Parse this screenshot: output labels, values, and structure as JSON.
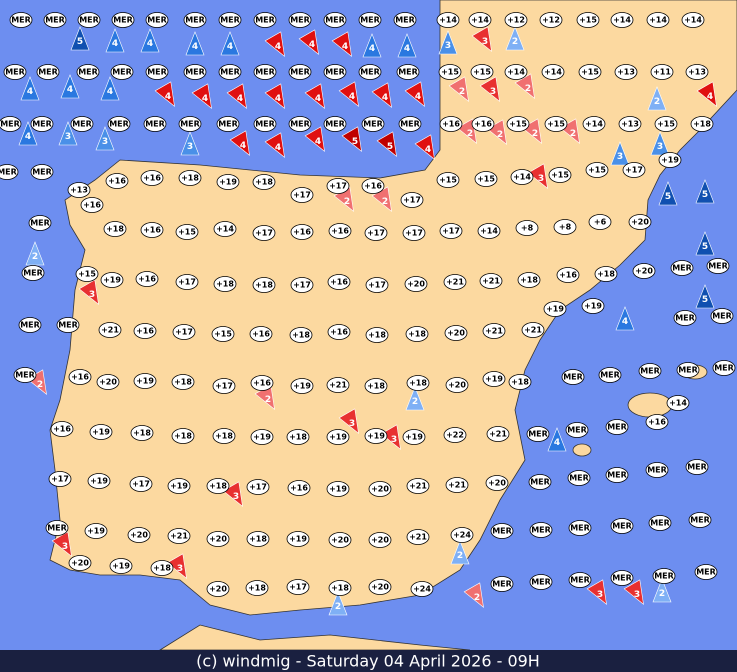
{
  "footer": "(c) windmig - Saturday 04 April 2026 - 09H",
  "stations": [
    "MER",
    "MER",
    "MER",
    "MER",
    "MER",
    "MER",
    "MER",
    "MER",
    "MER",
    "MER",
    "MER",
    "MER",
    "+14",
    "+14",
    "+12",
    "+12",
    "+15",
    "+14",
    "+14",
    "+14",
    "MER",
    "MER",
    "MER",
    "MER",
    "MER",
    "MER",
    "MER",
    "MER",
    "MER",
    "MER",
    "MER",
    "MER",
    "+15",
    "+15",
    "+14",
    "+14",
    "+15",
    "+13",
    "+11",
    "+13",
    "MER",
    "MER",
    "MER",
    "MER",
    "MER",
    "MER",
    "MER",
    "MER",
    "MER",
    "MER",
    "MER",
    "MER",
    "+16",
    "+16",
    "+15",
    "+15",
    "+14",
    "+13",
    "+15",
    "+18",
    "MER",
    "MER",
    "+13",
    "+16",
    "+16",
    "+18",
    "+19",
    "+18",
    "+17",
    "+17",
    "+16",
    "+17",
    "+15",
    "+15",
    "+14",
    "+15",
    "+15",
    "+17",
    "+19",
    "MER",
    "+16",
    "+18",
    "+16",
    "+15",
    "+14",
    "+17",
    "+16",
    "+16",
    "+17",
    "+17",
    "+17",
    "+14",
    "+8",
    "+8",
    "+6",
    "+20",
    "MER",
    "+15",
    "+19",
    "+16",
    "+17",
    "+18",
    "+18",
    "+17",
    "+16",
    "+17",
    "+20",
    "+21",
    "+21",
    "+18",
    "+16",
    "+18",
    "+20",
    "MER",
    "MER",
    "MER",
    "MER",
    "+21",
    "+16",
    "+17",
    "+15",
    "+16",
    "+18",
    "+16",
    "+18",
    "+18",
    "+20",
    "+21",
    "+21",
    "+19",
    "+19",
    "MER",
    "MER",
    "MER",
    "+16",
    "+20",
    "+19",
    "+18",
    "+17",
    "+16",
    "+19",
    "+21",
    "+18",
    "+18",
    "+20",
    "+19",
    "+18",
    "MER",
    "MER",
    "MER",
    "MER",
    "MER",
    "+16",
    "+19",
    "+18",
    "+18",
    "+18",
    "+19",
    "+18",
    "+19",
    "+19",
    "+19",
    "+22",
    "+21",
    "MER",
    "MER",
    "MER",
    "+16",
    "+14",
    "+17",
    "+19",
    "+17",
    "+19",
    "+18",
    "+17",
    "+16",
    "+19",
    "+20",
    "+21",
    "+21",
    "+20",
    "MER",
    "MER",
    "MER",
    "MER",
    "MER",
    "MER",
    "+19",
    "+20",
    "+21",
    "+20",
    "+18",
    "+19",
    "+20",
    "+20",
    "+21",
    "+24",
    "MER",
    "MER",
    "MER",
    "MER",
    "MER",
    "MER",
    "+20",
    "+19",
    "+18",
    "+20",
    "+18",
    "+17",
    "+18",
    "+20",
    "+24",
    "MER",
    "MER",
    "MER",
    "MER",
    "MER",
    "MER"
  ],
  "winds": [
    {
      "value": 5,
      "color": "#1050b0"
    },
    {
      "value": 4,
      "color": "#2a78e0"
    },
    {
      "value": 4,
      "color": "#2a78e0"
    },
    {
      "value": 4,
      "color": "#2a78e0"
    },
    {
      "value": 4,
      "color": "#2a78e0"
    },
    {
      "value": 4,
      "color": "#e01010"
    },
    {
      "value": 4,
      "color": "#e01010"
    },
    {
      "value": 4,
      "color": "#e01010"
    },
    {
      "value": 4,
      "color": "#2a78e0"
    },
    {
      "value": 4,
      "color": "#2a78e0"
    },
    {
      "value": 3,
      "color": "#4a90e8"
    },
    {
      "value": 3,
      "color": "#e83030"
    },
    {
      "value": 2,
      "color": "#7fb0f5"
    },
    {
      "value": 4,
      "color": "#2a78e0"
    },
    {
      "value": 4,
      "color": "#2a78e0"
    },
    {
      "value": 4,
      "color": "#2a78e0"
    },
    {
      "value": 4,
      "color": "#e01010"
    },
    {
      "value": 4,
      "color": "#e01010"
    },
    {
      "value": 4,
      "color": "#e01010"
    },
    {
      "value": 4,
      "color": "#e01010"
    },
    {
      "value": 4,
      "color": "#e01010"
    },
    {
      "value": 4,
      "color": "#e01010"
    },
    {
      "value": 4,
      "color": "#e01010"
    },
    {
      "value": 4,
      "color": "#e01010"
    },
    {
      "value": 2,
      "color": "#f07070"
    },
    {
      "value": 3,
      "color": "#e83030"
    },
    {
      "value": 2,
      "color": "#f07070"
    },
    {
      "value": 4,
      "color": "#e01010"
    },
    {
      "value": 4,
      "color": "#2a78e0"
    },
    {
      "value": 3,
      "color": "#4a90e8"
    },
    {
      "value": 3,
      "color": "#4a90e8"
    },
    {
      "value": 3,
      "color": "#4a90e8"
    },
    {
      "value": 4,
      "color": "#e01010"
    },
    {
      "value": 4,
      "color": "#e01010"
    },
    {
      "value": 4,
      "color": "#e01010"
    },
    {
      "value": 5,
      "color": "#c00000"
    },
    {
      "value": 5,
      "color": "#c00000"
    },
    {
      "value": 4,
      "color": "#e01010"
    },
    {
      "value": 2,
      "color": "#f07070"
    },
    {
      "value": 2,
      "color": "#f07070"
    },
    {
      "value": 2,
      "color": "#f07070"
    },
    {
      "value": 2,
      "color": "#f07070"
    },
    {
      "value": 2,
      "color": "#7fb0f5"
    },
    {
      "value": 3,
      "color": "#4a90e8"
    },
    {
      "value": 3,
      "color": "#4a90e8"
    },
    {
      "value": 2,
      "color": "#f07070"
    },
    {
      "value": 2,
      "color": "#f07070"
    },
    {
      "value": 3,
      "color": "#e83030"
    },
    {
      "value": 3,
      "color": "#e83030"
    },
    {
      "value": 5,
      "color": "#1050b0"
    },
    {
      "value": 5,
      "color": "#1050b0"
    },
    {
      "value": 5,
      "color": "#1050b0"
    },
    {
      "value": 5,
      "color": "#1050b0"
    },
    {
      "value": 3,
      "color": "#e83030"
    },
    {
      "value": 3,
      "color": "#e83030"
    },
    {
      "value": 3,
      "color": "#e83030"
    },
    {
      "value": 4,
      "color": "#2a78e0"
    },
    {
      "value": 4,
      "color": "#2a78e0"
    },
    {
      "value": 2,
      "color": "#f07070"
    },
    {
      "value": 3,
      "color": "#e83030"
    },
    {
      "value": 3,
      "color": "#e83030"
    },
    {
      "value": 2,
      "color": "#7fb0f5"
    },
    {
      "value": 2,
      "color": "#7fb0f5"
    },
    {
      "value": 2,
      "color": "#7fb0f5"
    },
    {
      "value": 3,
      "color": "#e83030"
    },
    {
      "value": 3,
      "color": "#e83030"
    },
    {
      "value": 2,
      "color": "#f07070"
    },
    {
      "value": 2,
      "color": "#f07070"
    },
    {
      "value": 2,
      "color": "#7fb0f5"
    },
    {
      "value": 2,
      "color": "#7fb0f5"
    }
  ]
}
